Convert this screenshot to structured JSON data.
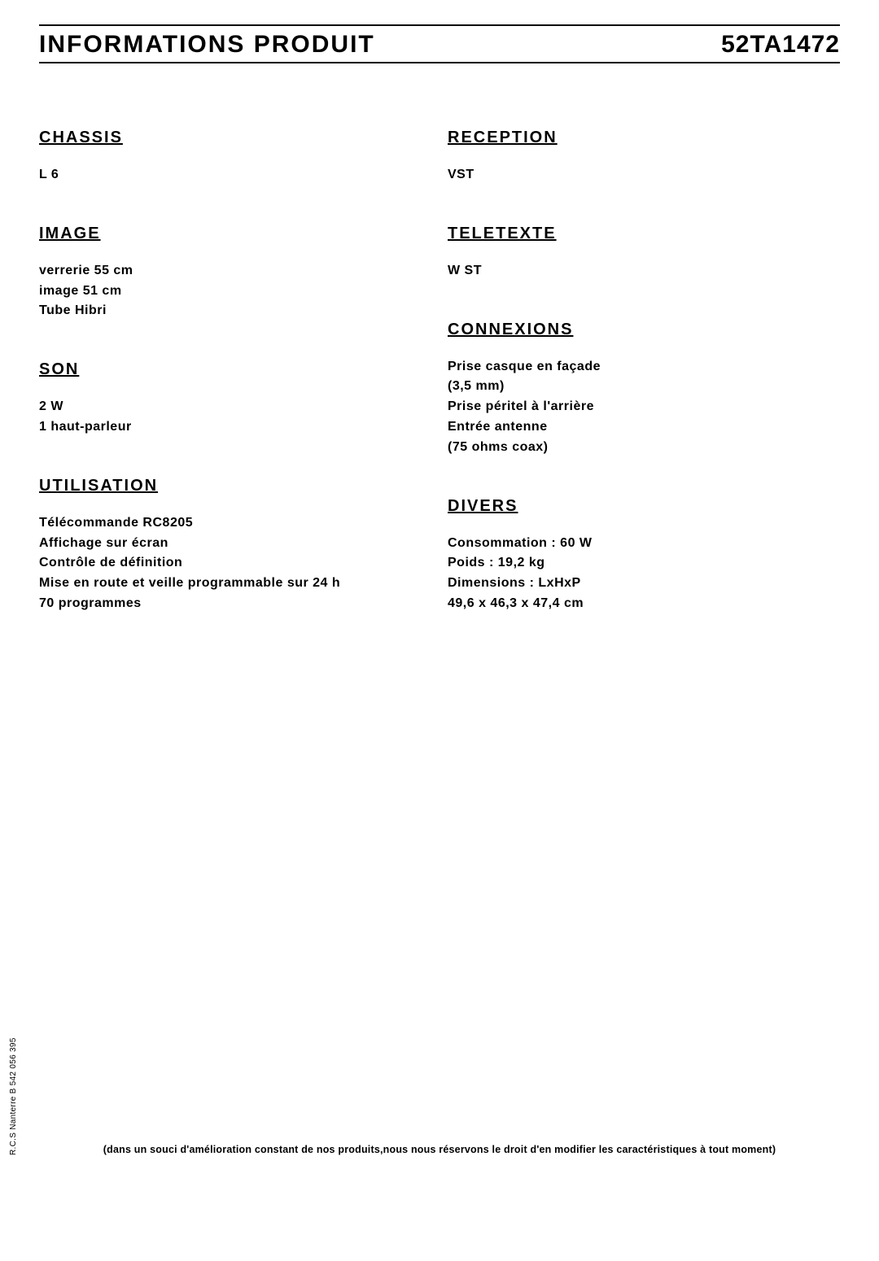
{
  "header": {
    "title": "INFORMATIONS PRODUIT",
    "code": "52TA1472"
  },
  "left": {
    "chassis": {
      "title": "CHASSIS",
      "body": "L 6"
    },
    "image": {
      "title": "IMAGE",
      "body": "verrerie 55 cm\nimage 51 cm\nTube Hibri"
    },
    "son": {
      "title": "SON",
      "body": "2 W\n1 haut-parleur"
    },
    "utilisation": {
      "title": "UTILISATION",
      "body": "Télécommande RC8205\nAffichage sur écran\nContrôle de définition\nMise en route et veille programmable sur 24 h\n70 programmes"
    }
  },
  "right": {
    "reception": {
      "title": "RECEPTION",
      "body": "VST"
    },
    "teletexte": {
      "title": "TELETEXTE",
      "body": "W ST"
    },
    "connexions": {
      "title": "CONNEXIONS",
      "body": "Prise casque en façade\n(3,5 mm)\nPrise péritel à l'arrière\nEntrée antenne\n(75 ohms coax)"
    },
    "divers": {
      "title": "DIVERS",
      "body": "Consommation : 60 W\nPoids : 19,2 kg\nDimensions : LxHxP\n49,6 x 46,3 x 47,4 cm"
    }
  },
  "disclaimer": "(dans un souci d'amélioration constant de nos produits,nous nous réservons le droit d'en modifier les caractéristiques à tout moment)",
  "legal": "R.C.S Nanterre B 542 056 395"
}
